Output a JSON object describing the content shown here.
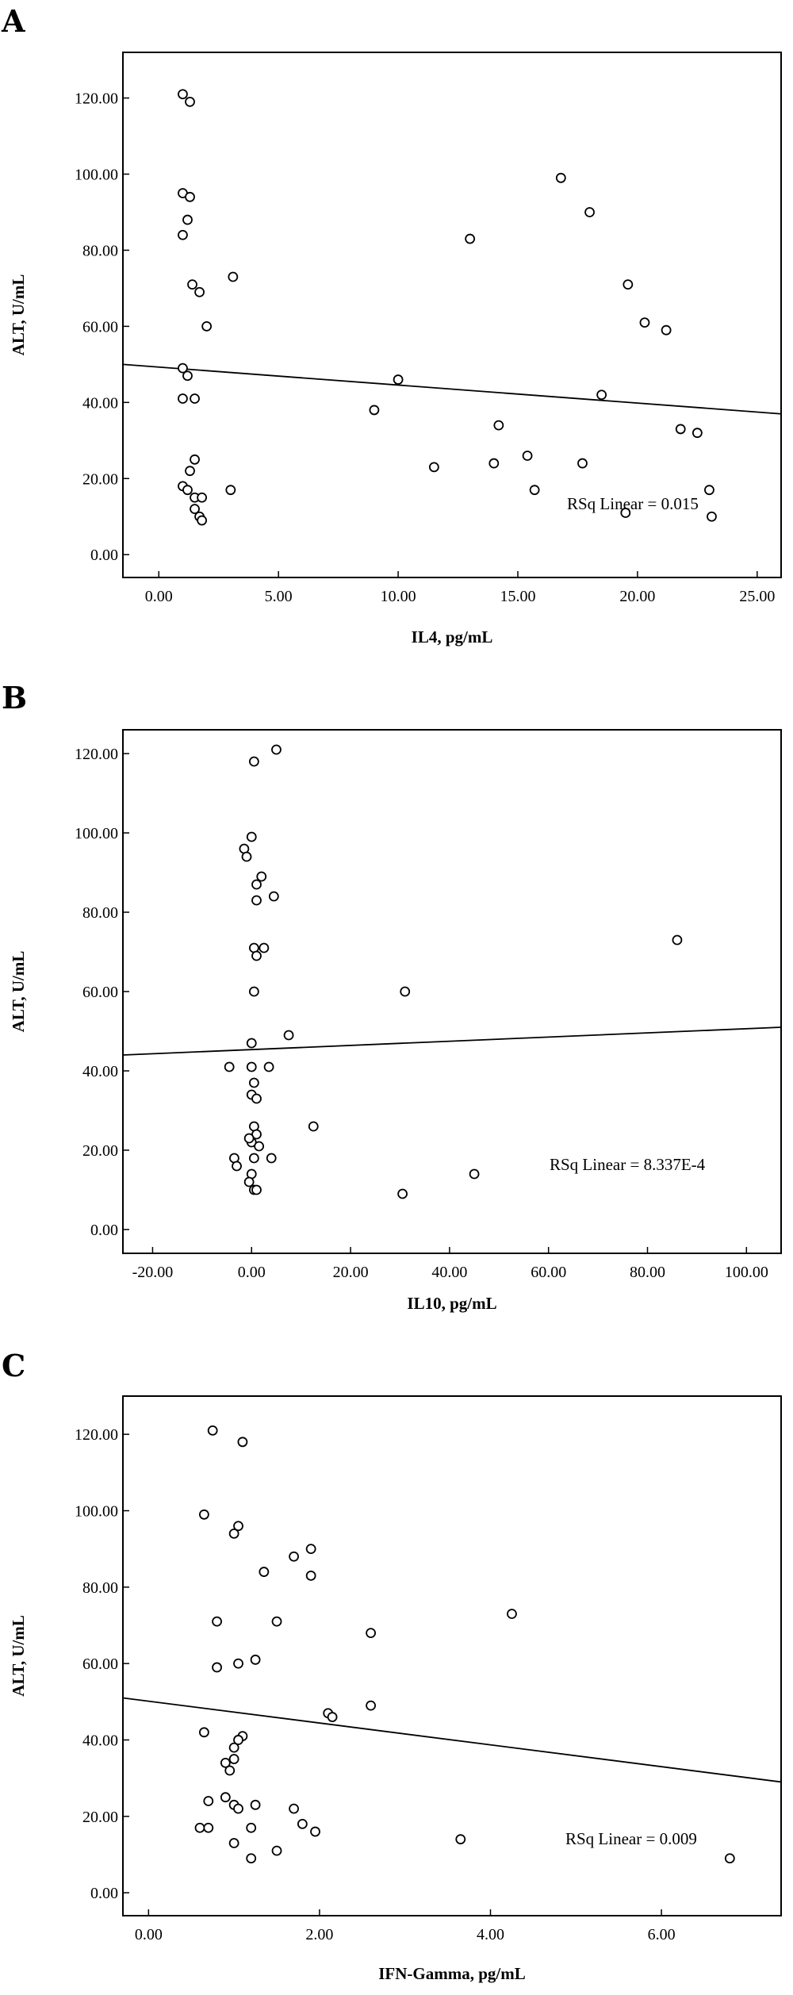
{
  "chart_data": [
    {
      "panel": "A",
      "type": "scatter",
      "xlabel": "IL4, pg/mL",
      "ylabel": "ALT, U/mL",
      "xticks": [
        "0.00",
        "5.00",
        "10.00",
        "15.00",
        "20.00",
        "25.00"
      ],
      "yticks": [
        "0.00",
        "20.00",
        "40.00",
        "60.00",
        "80.00",
        "100.00",
        "120.00"
      ],
      "xlim": [
        -1.5,
        26
      ],
      "ylim": [
        -6,
        132
      ],
      "annotation": "RSq Linear = 0.015",
      "fit_line": [
        [
          -1.5,
          50
        ],
        [
          26,
          37
        ]
      ],
      "points": [
        [
          1.0,
          121
        ],
        [
          1.3,
          119
        ],
        [
          1.0,
          95
        ],
        [
          1.3,
          94
        ],
        [
          1.2,
          88
        ],
        [
          1.0,
          84
        ],
        [
          1.4,
          71
        ],
        [
          1.7,
          69
        ],
        [
          3.1,
          73
        ],
        [
          2.0,
          60
        ],
        [
          1.0,
          49
        ],
        [
          1.2,
          47
        ],
        [
          1.0,
          41
        ],
        [
          1.5,
          41
        ],
        [
          1.5,
          25
        ],
        [
          1.3,
          22
        ],
        [
          1.0,
          18
        ],
        [
          1.2,
          17
        ],
        [
          1.5,
          15
        ],
        [
          1.8,
          15
        ],
        [
          1.5,
          12
        ],
        [
          1.7,
          10
        ],
        [
          1.8,
          9
        ],
        [
          3.0,
          17
        ],
        [
          9.0,
          38
        ],
        [
          10.0,
          46
        ],
        [
          11.5,
          23
        ],
        [
          13.0,
          83
        ],
        [
          14.0,
          24
        ],
        [
          14.2,
          34
        ],
        [
          15.4,
          26
        ],
        [
          15.7,
          17
        ],
        [
          16.8,
          99
        ],
        [
          17.7,
          24
        ],
        [
          18.0,
          90
        ],
        [
          18.5,
          42
        ],
        [
          19.6,
          71
        ],
        [
          20.3,
          61
        ],
        [
          21.2,
          59
        ],
        [
          21.8,
          33
        ],
        [
          22.5,
          32
        ],
        [
          23.0,
          17
        ],
        [
          23.1,
          10
        ],
        [
          19.5,
          11
        ]
      ]
    },
    {
      "panel": "B",
      "type": "scatter",
      "xlabel": "IL10, pg/mL",
      "ylabel": "ALT, U/mL",
      "xticks": [
        "-20.00",
        "0.00",
        "20.00",
        "40.00",
        "60.00",
        "80.00",
        "100.00"
      ],
      "yticks": [
        "0.00",
        "20.00",
        "40.00",
        "60.00",
        "80.00",
        "100.00",
        "120.00"
      ],
      "xlim": [
        -26,
        107
      ],
      "ylim": [
        -6,
        126
      ],
      "annotation": "RSq Linear = 8.337E-4",
      "fit_line": [
        [
          -26,
          44
        ],
        [
          107,
          51
        ]
      ],
      "points": [
        [
          0.5,
          118
        ],
        [
          5.0,
          121
        ],
        [
          0.0,
          99
        ],
        [
          -1.5,
          96
        ],
        [
          -1.0,
          94
        ],
        [
          2.0,
          89
        ],
        [
          1.0,
          87
        ],
        [
          1.0,
          83
        ],
        [
          4.5,
          84
        ],
        [
          0.5,
          71
        ],
        [
          2.5,
          71
        ],
        [
          1.0,
          69
        ],
        [
          0.5,
          60
        ],
        [
          31.0,
          60
        ],
        [
          86.0,
          73
        ],
        [
          7.5,
          49
        ],
        [
          0.0,
          47
        ],
        [
          -4.5,
          41
        ],
        [
          0.0,
          41
        ],
        [
          3.5,
          41
        ],
        [
          0.5,
          37
        ],
        [
          0.0,
          34
        ],
        [
          1.0,
          33
        ],
        [
          0.5,
          26
        ],
        [
          1.0,
          24
        ],
        [
          0.0,
          22
        ],
        [
          -0.5,
          23
        ],
        [
          1.5,
          21
        ],
        [
          12.5,
          26
        ],
        [
          -3.5,
          18
        ],
        [
          -3.0,
          16
        ],
        [
          0.5,
          18
        ],
        [
          4.0,
          18
        ],
        [
          0.0,
          14
        ],
        [
          -0.5,
          12
        ],
        [
          0.5,
          10
        ],
        [
          1.0,
          10
        ],
        [
          30.5,
          9
        ],
        [
          45.0,
          14
        ]
      ]
    },
    {
      "panel": "C",
      "type": "scatter",
      "xlabel": "IFN-Gamma, pg/mL",
      "ylabel": "ALT, U/mL",
      "xticks": [
        "0.00",
        "2.00",
        "4.00",
        "6.00"
      ],
      "yticks": [
        "0.00",
        "20.00",
        "40.00",
        "60.00",
        "80.00",
        "100.00",
        "120.00"
      ],
      "xlim": [
        -0.3,
        7.4
      ],
      "ylim": [
        -6,
        130
      ],
      "annotation": "RSq Linear = 0.009",
      "fit_line": [
        [
          -0.3,
          51
        ],
        [
          7.4,
          29
        ]
      ],
      "points": [
        [
          0.75,
          121
        ],
        [
          1.1,
          118
        ],
        [
          0.65,
          99
        ],
        [
          1.05,
          96
        ],
        [
          1.0,
          94
        ],
        [
          1.35,
          84
        ],
        [
          1.9,
          90
        ],
        [
          1.7,
          88
        ],
        [
          1.9,
          83
        ],
        [
          0.8,
          71
        ],
        [
          1.5,
          71
        ],
        [
          1.25,
          61
        ],
        [
          1.05,
          60
        ],
        [
          0.8,
          59
        ],
        [
          4.25,
          73
        ],
        [
          2.6,
          68
        ],
        [
          2.6,
          49
        ],
        [
          2.1,
          47
        ],
        [
          2.15,
          46
        ],
        [
          0.65,
          42
        ],
        [
          1.1,
          41
        ],
        [
          1.05,
          40
        ],
        [
          1.0,
          38
        ],
        [
          1.0,
          35
        ],
        [
          0.9,
          34
        ],
        [
          0.95,
          32
        ],
        [
          0.7,
          24
        ],
        [
          0.9,
          25
        ],
        [
          1.0,
          23
        ],
        [
          1.05,
          22
        ],
        [
          1.25,
          23
        ],
        [
          1.7,
          22
        ],
        [
          0.6,
          17
        ],
        [
          0.7,
          17
        ],
        [
          1.2,
          17
        ],
        [
          1.8,
          18
        ],
        [
          1.95,
          16
        ],
        [
          1.0,
          13
        ],
        [
          1.5,
          11
        ],
        [
          1.2,
          9
        ],
        [
          3.65,
          14
        ],
        [
          6.8,
          9
        ]
      ]
    }
  ]
}
